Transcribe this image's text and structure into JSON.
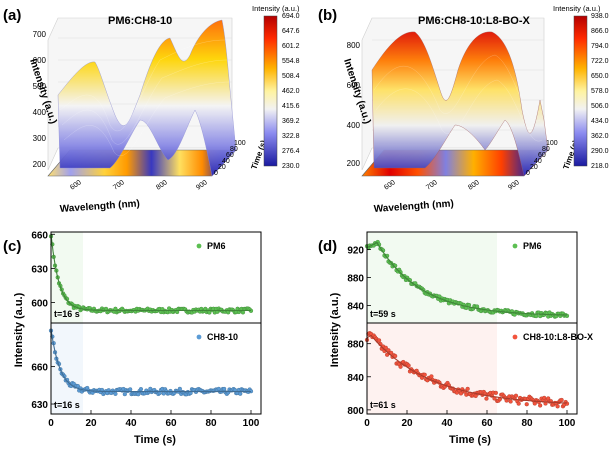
{
  "figure": {
    "panels": [
      {
        "label": "(a)",
        "title": "PM6:CH8-10",
        "zlabel": "Intensity (a.u.)",
        "xlabel": "Wavelength (nm)",
        "ylabel": "Time (s)",
        "colorbar_title": "Intensity (a.u.)",
        "colorbar_ticks": [
          "694.0",
          "647.6",
          "601.2",
          "554.8",
          "508.4",
          "462.0",
          "415.6",
          "369.2",
          "322.8",
          "276.4",
          "230.0"
        ],
        "z_ticks": [
          "700",
          "600",
          "500",
          "400",
          "300",
          "200"
        ],
        "x_ticks": [
          "600",
          "700",
          "800",
          "900"
        ],
        "y_ticks": [
          "0",
          "20",
          "40",
          "60",
          "80",
          "100"
        ]
      },
      {
        "label": "(b)",
        "title": "PM6:CH8-10:L8-BO-X",
        "zlabel": "Intensity (a.u.)",
        "xlabel": "Wavelength (nm)",
        "ylabel": "Time (s)",
        "colorbar_title": "Intensity (a.u.)",
        "colorbar_ticks": [
          "938.0",
          "866.0",
          "794.0",
          "722.0",
          "650.0",
          "578.0",
          "506.0",
          "434.0",
          "362.0",
          "290.0",
          "218.0"
        ],
        "z_ticks": [
          "800",
          "600",
          "400",
          "200"
        ],
        "x_ticks": [
          "600",
          "700",
          "800",
          "900"
        ],
        "y_ticks": [
          "0",
          "20",
          "40",
          "60",
          "80",
          "100"
        ]
      },
      {
        "label": "(c)",
        "xlabel": "Time (s)",
        "ylabel": "Intensity (a.u.)"
      },
      {
        "label": "(d)",
        "xlabel": "Time (s)",
        "ylabel": "Intensity (a.u.)"
      }
    ]
  },
  "chart_data": [
    {
      "type": "scatter",
      "panel": "(c)",
      "xlabel": "Time (s)",
      "ylabel": "Intensity (a.u.)",
      "xlim": [
        0,
        105
      ],
      "x_ticks": [
        "0",
        "20",
        "40",
        "60",
        "80",
        "100"
      ],
      "subplots": [
        {
          "name": "PM6",
          "color": "#5cbf52",
          "ylim": [
            582,
            662
          ],
          "y_ticks": [
            600,
            630,
            660
          ],
          "annotation": "t=16 s",
          "shade_end": 16,
          "model": {
            "start": 660,
            "end": 593,
            "tau": 4.0
          },
          "noise": 1.8,
          "n": 150
        },
        {
          "name": "CH8-10",
          "color": "#5b9bd5",
          "ylim": [
            622,
            695
          ],
          "y_ticks": [
            630,
            660
          ],
          "annotation": "t=16 s",
          "shade_end": 16,
          "model": {
            "start": 690,
            "end": 640,
            "tau": 4.5
          },
          "noise": 2.2,
          "n": 150
        }
      ]
    },
    {
      "type": "scatter",
      "panel": "(d)",
      "xlabel": "Time (s)",
      "ylabel": "Intensity (a.u.)",
      "xlim": [
        0,
        105
      ],
      "x_ticks": [
        "0",
        "20",
        "40",
        "60",
        "80",
        "100"
      ],
      "subplots": [
        {
          "name": "PM6",
          "color": "#5cbf52",
          "ylim": [
            815,
            945
          ],
          "y_ticks": [
            840,
            880,
            920
          ],
          "annotation": "t=59 s",
          "shade_end": 65,
          "model": {
            "peak": 930,
            "peak_t": 5,
            "end": 825,
            "tau": 22
          },
          "noise": 3.0,
          "n": 150
        },
        {
          "name": "CH8-10:L8-BO-X",
          "color": "#f2543d",
          "ylim": [
            795,
            905
          ],
          "y_ticks": [
            800,
            840,
            880
          ],
          "annotation": "t=61 s",
          "shade_end": 65,
          "model": {
            "peak": 890,
            "peak_t": 2,
            "end": 805,
            "tau": 30
          },
          "noise": 5.0,
          "n": 150
        }
      ]
    }
  ]
}
